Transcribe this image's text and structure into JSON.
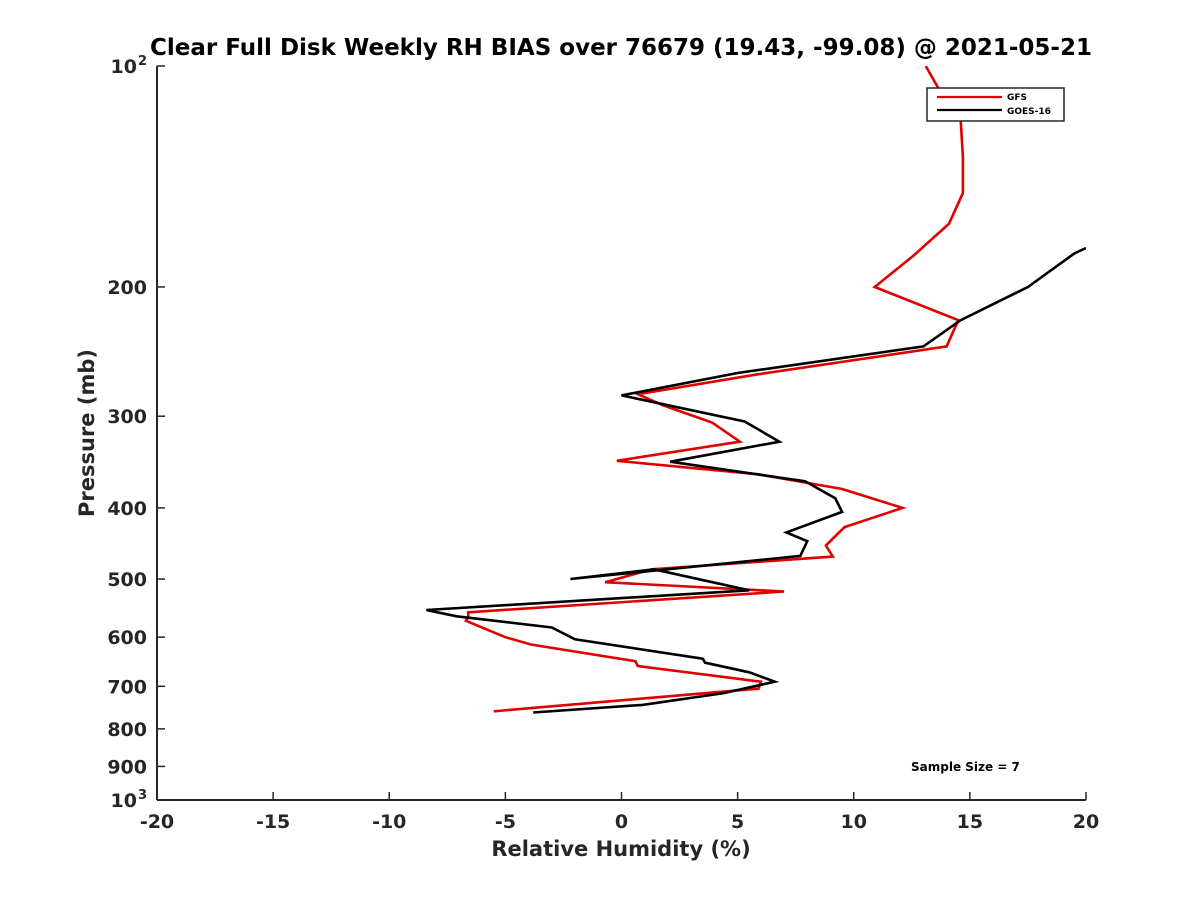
{
  "chart_data": {
    "type": "line",
    "title": "Clear Full Disk Weekly RH BIAS over 76679 (19.43, -99.08) @ 2021-05-21",
    "xlabel": "Relative Humidity (%)",
    "ylabel": "Pressure (mb)",
    "xlim": [
      -20,
      20
    ],
    "ylim": [
      100,
      1000
    ],
    "y_scale": "log",
    "y_reversed": true,
    "grid": false,
    "legend_position": "top-right",
    "annotation": "Sample Size = 7",
    "x_ticks": [
      "-20",
      "-15",
      "-10",
      "-5",
      "0",
      "5",
      "10",
      "15",
      "20"
    ],
    "y_ticks": [
      {
        "value": 100,
        "label": "10",
        "sup": "2"
      },
      {
        "value": 200,
        "label": "200",
        "sup": ""
      },
      {
        "value": 300,
        "label": "300",
        "sup": ""
      },
      {
        "value": 400,
        "label": "400",
        "sup": ""
      },
      {
        "value": 500,
        "label": "500",
        "sup": ""
      },
      {
        "value": 600,
        "label": "600",
        "sup": ""
      },
      {
        "value": 700,
        "label": "700",
        "sup": ""
      },
      {
        "value": 800,
        "label": "800",
        "sup": ""
      },
      {
        "value": 900,
        "label": "900",
        "sup": ""
      },
      {
        "value": 1000,
        "label": "10",
        "sup": "3"
      }
    ],
    "series": [
      {
        "name": "GFS",
        "color": "#e00000",
        "points": [
          [
            -5.5,
            757
          ],
          [
            5.9,
            705
          ],
          [
            6.0,
            690
          ],
          [
            0.7,
            657
          ],
          [
            0.6,
            647
          ],
          [
            -3.9,
            614
          ],
          [
            -5.0,
            600
          ],
          [
            -6.7,
            570
          ],
          [
            -6.6,
            563
          ],
          [
            -6.6,
            555
          ],
          [
            7.0,
            520
          ],
          [
            -0.7,
            505
          ],
          [
            1.3,
            485
          ],
          [
            9.1,
            466
          ],
          [
            8.8,
            450
          ],
          [
            9.6,
            425
          ],
          [
            12.1,
            400
          ],
          [
            9.5,
            377
          ],
          [
            5.9,
            360
          ],
          [
            -0.2,
            345
          ],
          [
            5.1,
            325
          ],
          [
            3.9,
            306
          ],
          [
            1.8,
            290
          ],
          [
            0.7,
            280
          ],
          [
            5.9,
            263
          ],
          [
            14.0,
            241
          ],
          [
            14.5,
            222
          ],
          [
            10.9,
            200
          ],
          [
            12.6,
            181
          ],
          [
            14.1,
            164
          ],
          [
            14.7,
            149
          ],
          [
            14.7,
            133
          ],
          [
            14.6,
            118
          ],
          [
            13.7,
            108
          ],
          [
            13.1,
            100
          ]
        ]
      },
      {
        "name": "GOES-16",
        "color": "#000000",
        "points": [
          [
            -3.8,
            760
          ],
          [
            0.9,
            742
          ],
          [
            4.4,
            715
          ],
          [
            6.6,
            690
          ],
          [
            5.5,
            670
          ],
          [
            3.6,
            650
          ],
          [
            3.5,
            642
          ],
          [
            -2.0,
            604
          ],
          [
            -3.0,
            582
          ],
          [
            -7.1,
            562
          ],
          [
            -8.4,
            551
          ],
          [
            5.5,
            518
          ],
          [
            1.4,
            485
          ],
          [
            -2.2,
            500
          ],
          [
            7.7,
            465
          ],
          [
            8.0,
            444
          ],
          [
            7.1,
            432
          ],
          [
            9.5,
            405
          ],
          [
            9.2,
            388
          ],
          [
            7.9,
            368
          ],
          [
            2.1,
            346
          ],
          [
            6.8,
            325
          ],
          [
            5.3,
            305
          ],
          [
            0.0,
            281
          ],
          [
            5.0,
            262
          ],
          [
            13.0,
            241
          ],
          [
            14.6,
            222
          ],
          [
            17.5,
            200
          ],
          [
            19.5,
            180
          ],
          [
            20.0,
            177
          ]
        ]
      }
    ]
  }
}
